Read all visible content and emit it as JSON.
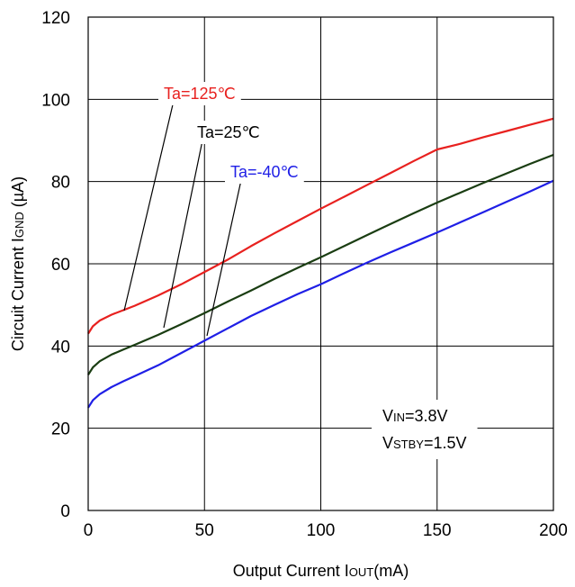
{
  "chart_data": {
    "type": "line",
    "xlabel": {
      "main": "Output Current I",
      "sub": "OUT",
      "unit": "(mA)"
    },
    "ylabel": {
      "main": "Circuit Current I",
      "sub": "GND",
      "unit": " (µA)"
    },
    "xlim": [
      0,
      200
    ],
    "ylim": [
      0,
      120
    ],
    "xticks": [
      0,
      50,
      100,
      150,
      200
    ],
    "yticks": [
      0,
      20,
      40,
      60,
      80,
      100,
      120
    ],
    "grid": true,
    "series": [
      {
        "name": "Ta=125℃",
        "color": "#e8211f",
        "x": [
          0,
          2,
          5,
          10,
          15,
          20,
          30,
          40,
          50,
          60,
          70,
          80,
          90,
          100,
          110,
          120,
          130,
          140,
          150,
          160,
          170,
          180,
          190,
          200
        ],
        "y": [
          43.0,
          44.8,
          46.2,
          47.6,
          48.7,
          49.8,
          52.3,
          55.0,
          58.0,
          61.0,
          64.3,
          67.4,
          70.4,
          73.4,
          76.3,
          79.2,
          82.1,
          85.0,
          87.8,
          89.2,
          90.8,
          92.3,
          93.8,
          95.3
        ]
      },
      {
        "name": "Ta=25℃",
        "color": "#1a3d12",
        "x": [
          0,
          2,
          5,
          10,
          15,
          20,
          30,
          40,
          50,
          60,
          70,
          80,
          90,
          100,
          110,
          120,
          130,
          140,
          150,
          160,
          170,
          180,
          190,
          200
        ],
        "y": [
          33.0,
          34.8,
          36.3,
          37.9,
          39.1,
          40.3,
          42.7,
          45.3,
          48.0,
          50.8,
          53.5,
          56.3,
          59.0,
          61.6,
          64.3,
          67.0,
          69.7,
          72.3,
          74.9,
          77.3,
          79.7,
          82.0,
          84.3,
          86.5
        ]
      },
      {
        "name": "Ta=-40℃",
        "color": "#1f1fe6",
        "x": [
          0,
          2,
          5,
          10,
          15,
          20,
          30,
          40,
          50,
          60,
          70,
          80,
          90,
          100,
          110,
          120,
          130,
          140,
          150,
          160,
          170,
          180,
          190,
          200
        ],
        "y": [
          25.0,
          26.8,
          28.3,
          30.0,
          31.4,
          32.7,
          35.3,
          38.3,
          41.3,
          44.3,
          47.3,
          50.0,
          52.6,
          55.0,
          57.7,
          60.3,
          62.8,
          65.2,
          67.6,
          70.1,
          72.6,
          75.1,
          77.6,
          80.2
        ]
      }
    ],
    "annotations": [
      {
        "text": "Ta=125℃",
        "color": "#e8211f"
      },
      {
        "text": "Ta=25℃",
        "color": "#000000"
      },
      {
        "text": "Ta=-40℃",
        "color": "#1f1fe6"
      }
    ],
    "conditions": [
      {
        "main": "V",
        "sub": "IN",
        "rest": "=3.8V"
      },
      {
        "main": "V",
        "sub": "STBY",
        "rest": "=1.5V"
      }
    ]
  }
}
